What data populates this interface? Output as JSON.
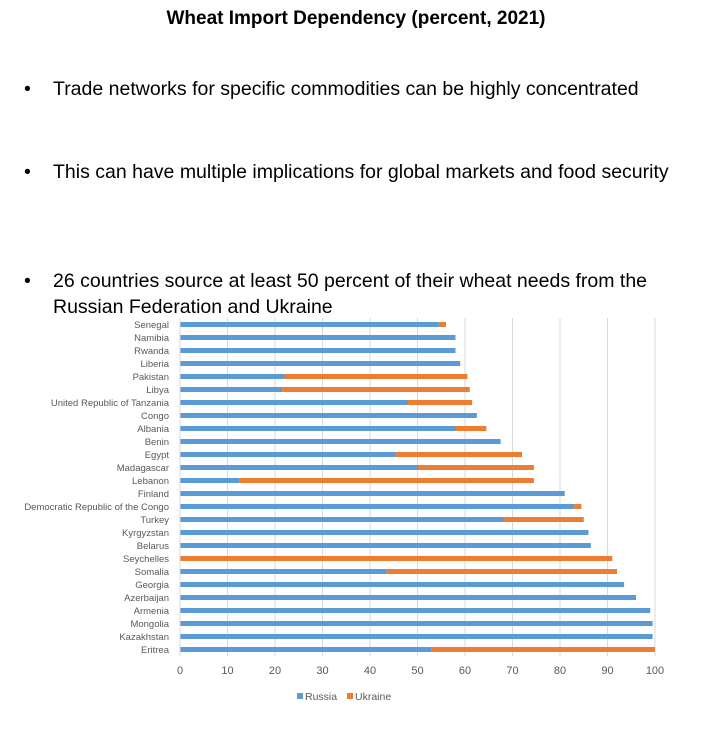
{
  "title": "Wheat Import Dependency (percent, 2021)",
  "bullets": [
    "Trade networks for specific commodities can be highly concentrated",
    "This can have multiple implications for global markets and food security",
    "26 countries source at least 50 percent of their wheat needs from the Russian Federation and Ukraine"
  ],
  "colors": {
    "russia": "#5b9bd5",
    "ukraine": "#ed7d31",
    "grid": "#d9d9d9",
    "axis_text": "#595959"
  },
  "chart_data": {
    "type": "bar",
    "orientation": "horizontal",
    "stacked": true,
    "title": "",
    "xlabel": "",
    "ylabel": "",
    "xlim": [
      0,
      100
    ],
    "xticks": [
      0,
      10,
      20,
      30,
      40,
      50,
      60,
      70,
      80,
      90,
      100
    ],
    "grid": true,
    "legend_position": "bottom",
    "categories": [
      "Senegal",
      "Namibia",
      "Rwanda",
      "Liberia",
      "Pakistan",
      "Libya",
      "United Republic of Tanzania",
      "Congo",
      "Albania",
      "Benin",
      "Egypt",
      "Madagascar",
      "Lebanon",
      "Finland",
      "Democratic Republic of the Congo",
      "Turkey",
      "Kyrgyzstan",
      "Belarus",
      "Seychelles",
      "Somalia",
      "Georgia",
      "Azerbaijan",
      "Armenia",
      "Mongolia",
      "Kazakhstan",
      "Eritrea"
    ],
    "series": [
      {
        "name": "Russia",
        "values": [
          54.5,
          58,
          58,
          59,
          22,
          21.5,
          48,
          62.5,
          58,
          67.5,
          45.5,
          50,
          12.5,
          81,
          83,
          68,
          86,
          86.5,
          0,
          43.5,
          93.5,
          96,
          99,
          99.5,
          99.5,
          53
        ]
      },
      {
        "name": "Ukraine",
        "values": [
          1.5,
          0,
          0,
          0,
          38.5,
          39.5,
          13.5,
          0,
          6.5,
          0,
          26.5,
          24.5,
          62,
          0,
          1.5,
          17,
          0,
          0,
          91,
          48.5,
          0,
          0,
          0,
          0,
          0,
          47
        ]
      }
    ]
  }
}
